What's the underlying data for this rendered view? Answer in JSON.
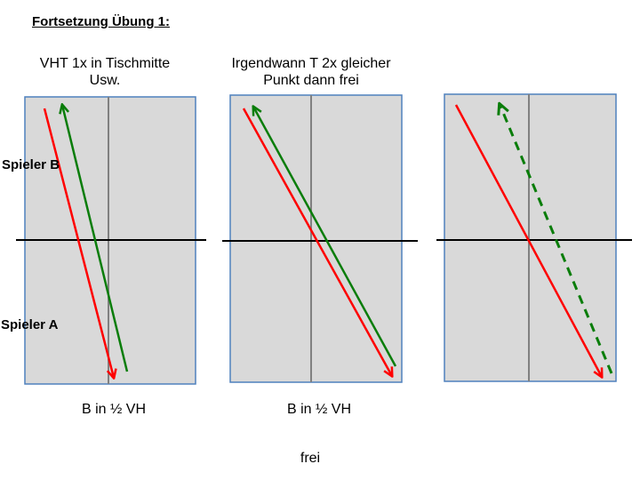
{
  "heading": "Fortsetzung Übung 1:",
  "panels": [
    {
      "caption_line1": "VHT 1x in Tischmitte",
      "caption_line2": "Usw.",
      "bottom_label": "B in ½ VH"
    },
    {
      "caption_line1": "Irgendwann T 2x gleicher",
      "caption_line2": "Punkt dann frei",
      "bottom_label": "B in ½ VH"
    },
    {
      "caption_line1": "",
      "caption_line2": "",
      "bottom_label": "frei"
    }
  ],
  "players": {
    "top": "Spieler B",
    "bottom": "Spieler A"
  },
  "colors": {
    "table_fill": "#d9d9d9",
    "table_border": "#4f81bd",
    "center_line": "#808080",
    "net": "#000000",
    "red_arrow": "#ff0000",
    "green_arrow": "#0a7d0a"
  }
}
